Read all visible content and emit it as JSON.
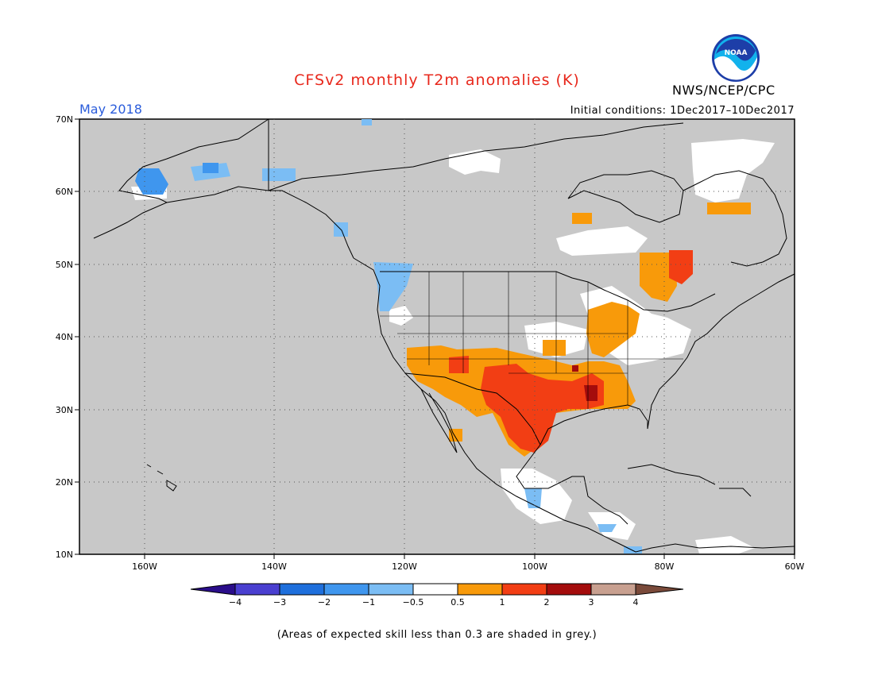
{
  "header": {
    "title": "CFSv2 monthly T2m anomalies (K)",
    "organization": "NWS/NCEP/CPC",
    "logo_text": "NOAA",
    "month": "May 2018",
    "initial_conditions": "Initial conditions: 1Dec2017–10Dec2017"
  },
  "map": {
    "lon_labels": [
      "160W",
      "140W",
      "120W",
      "100W",
      "80W",
      "60W"
    ],
    "lat_labels": [
      "70N",
      "60N",
      "50N",
      "40N",
      "30N",
      "20N",
      "10N"
    ],
    "background_color": "#c8c8c8",
    "coast_color": "#000000"
  },
  "colorbar": {
    "tick_labels": [
      "−4",
      "−3",
      "−2",
      "−1",
      "−0.5",
      "0.5",
      "1",
      "2",
      "3",
      "4"
    ],
    "colors": [
      "#2a0d8a",
      "#4a3fd0",
      "#1e6fdc",
      "#3f96ee",
      "#7bbdf4",
      "#ffffff",
      "#f89a0a",
      "#f23e14",
      "#a40c0c",
      "#c8a090",
      "#7a4a3a"
    ]
  },
  "footnote": "(Areas of expected skill less than 0.3 are shaded in grey.)"
}
